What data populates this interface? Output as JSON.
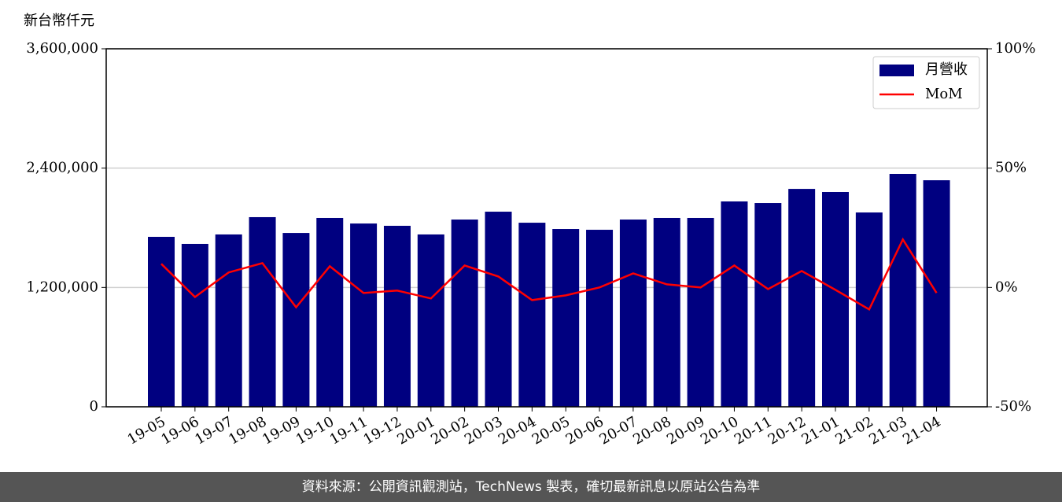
{
  "chart_data": {
    "type": "bar",
    "y_label": "新台幣仟元",
    "categories": [
      "19-05",
      "19-06",
      "19-07",
      "19-08",
      "19-09",
      "19-10",
      "19-11",
      "19-12",
      "20-01",
      "20-02",
      "20-03",
      "20-04",
      "20-05",
      "20-06",
      "20-07",
      "20-08",
      "20-09",
      "20-10",
      "20-11",
      "20-12",
      "21-01",
      "21-02",
      "21-03",
      "21-04"
    ],
    "series": [
      {
        "name": "月營收",
        "type": "bar",
        "color": "#000080",
        "values": [
          1709000,
          1638000,
          1733000,
          1907000,
          1748000,
          1899000,
          1843000,
          1820000,
          1733000,
          1883000,
          1962000,
          1851000,
          1788000,
          1780000,
          1883000,
          1899000,
          1899000,
          2065000,
          2049000,
          2191000,
          2160000,
          1954000,
          2342000,
          2278000
        ]
      },
      {
        "name": "MoM",
        "type": "line",
        "color": "#ff0000",
        "axis": "y2",
        "values": [
          9.9,
          -4,
          6.3,
          10.2,
          -8.3,
          8.9,
          -2.3,
          -1.3,
          -4.6,
          9.2,
          4.6,
          -5.3,
          -3.3,
          0,
          5.9,
          1.3,
          0,
          9.2,
          -0.7,
          6.9,
          -1,
          -9.2,
          20.1,
          -2.3
        ]
      }
    ],
    "ylim": [
      0,
      3600000
    ],
    "yticks": [
      0,
      {
        "value": 1200000,
        "label": "1,200,000"
      },
      {
        "value": 2400000,
        "label": "2,400,000"
      },
      {
        "value": 3600000,
        "label": "3,600,000"
      }
    ],
    "y2lim": [
      -50,
      100
    ],
    "y2ticks": [
      {
        "value": -50,
        "label": "-50%"
      },
      {
        "value": 0,
        "label": "0%"
      },
      {
        "value": 50,
        "label": "50%"
      },
      {
        "value": 100,
        "label": "100%"
      }
    ],
    "grid": true,
    "legend": "upper right"
  },
  "footer": {
    "text": "資料來源：公開資訊觀測站，TechNews 製表，確切最新訊息以原站公告為準"
  }
}
